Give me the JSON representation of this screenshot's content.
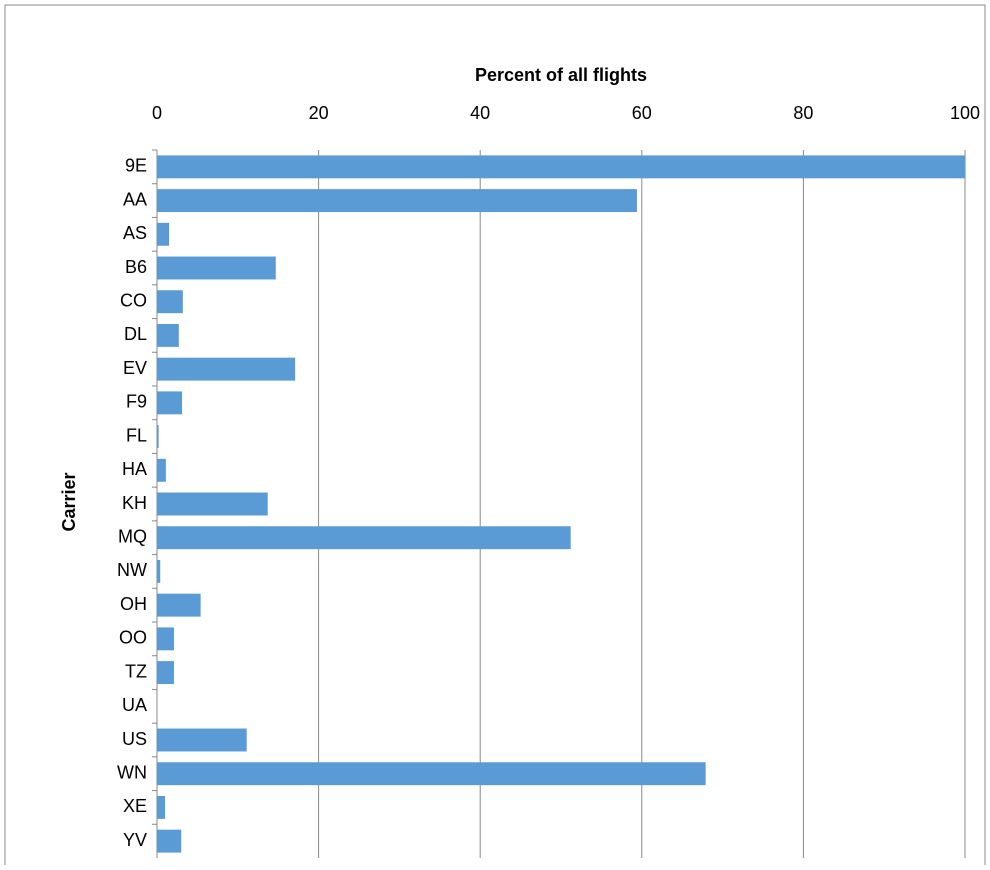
{
  "chart_data": {
    "type": "barh",
    "x_label": "Percent of all flights",
    "y_label": "Carrier",
    "categories": [
      "9E",
      "AA",
      "AS",
      "B6",
      "CO",
      "DL",
      "EV",
      "F9",
      "FL",
      "HA",
      "KH",
      "MQ",
      "NW",
      "OH",
      "OO",
      "TZ",
      "UA",
      "US",
      "WN",
      "XE",
      "YV"
    ],
    "values": [
      100,
      59.4,
      1.5,
      14.7,
      3.2,
      2.7,
      17.1,
      3.1,
      0.2,
      1.1,
      13.7,
      51.2,
      0.4,
      5.4,
      2.1,
      2.1,
      0,
      11.1,
      67.9,
      1.0,
      3.0
    ],
    "color": "#5b9bd5",
    "xlim": [
      0,
      100
    ],
    "xticks": [
      0,
      20,
      40,
      60,
      80,
      100
    ],
    "grid": true
  }
}
